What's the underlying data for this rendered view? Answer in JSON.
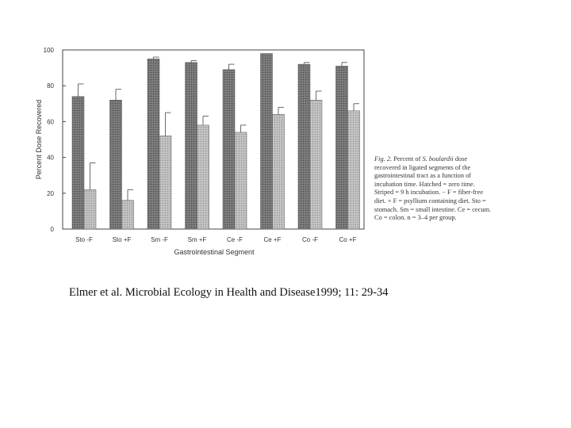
{
  "chart_data": {
    "type": "bar",
    "title": "",
    "xlabel": "Gastrointestinal Segment",
    "ylabel": "Percent Dose Recovered",
    "ylim": [
      0,
      100
    ],
    "yticks": [
      0,
      20,
      40,
      60,
      80,
      100
    ],
    "categories": [
      "Sto -F",
      "Sto +F",
      "Sm -F",
      "Sm +F",
      "Ce -F",
      "Ce +F",
      "Co -F",
      "Co +F"
    ],
    "series": [
      {
        "style": "hatched",
        "color": "#8a8a8a",
        "values": [
          74,
          72,
          95,
          93,
          89,
          98,
          92,
          91
        ],
        "errors": [
          7,
          6,
          1,
          1,
          3,
          0,
          1,
          2
        ]
      },
      {
        "style": "striped",
        "color": "#b8b8b8",
        "values": [
          22,
          16,
          52,
          58,
          54,
          64,
          72,
          66
        ],
        "errors": [
          15,
          6,
          13,
          5,
          4,
          4,
          5,
          4
        ]
      }
    ],
    "grid": false
  },
  "caption": {
    "fig_label": "Fig. 2.",
    "text_1": "Percent of ",
    "species": "S. boulardii",
    "text_2": " dose recovered in ligated segments of the gastrointestinal tract as a function of incubation time. Hatched = zero time. Striped = 9 h incubation. − F = fiber-free diet. + F = psyllium containing diet. Sto = stomach. Sm = small intestine. Ce = cecum. Co = colon. n = 3–4 per group."
  },
  "citation": "Elmer et al. Microbial Ecology in Health and Disease1999; 11: 29-34"
}
